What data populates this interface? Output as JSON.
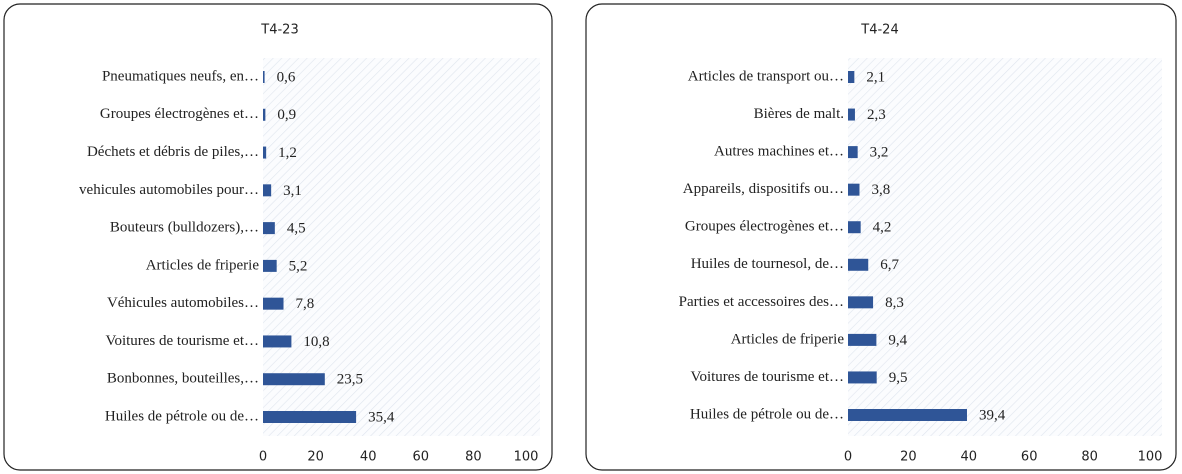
{
  "chart_data": [
    {
      "type": "bar",
      "orientation": "horizontal",
      "title": "T4-23",
      "categories": [
        "Pneumatiques neufs, en…",
        "Groupes électrogènes et…",
        "Déchets et débris de piles,…",
        "vehicules automobiles pour…",
        "Bouteurs (bulldozers),…",
        "Articles de friperie",
        "Véhicules automobiles…",
        "Voitures de tourisme et…",
        "Bonbonnes, bouteilles,…",
        "Huiles de pétrole ou de…"
      ],
      "values": [
        0.6,
        0.9,
        1.2,
        3.1,
        4.5,
        5.2,
        7.8,
        10.8,
        23.5,
        35.4
      ],
      "value_labels": [
        "0,6",
        "0,9",
        "1,2",
        "3,1",
        "4,5",
        "5,2",
        "7,8",
        "10,8",
        "23,5",
        "35,4"
      ],
      "color": "#2f5597",
      "xlim": [
        0,
        100
      ],
      "xticks": [
        0,
        20,
        40,
        60,
        80,
        100
      ]
    },
    {
      "type": "bar",
      "orientation": "horizontal",
      "title": "T4-24",
      "categories": [
        "Articles de transport ou…",
        "Bières de malt.",
        "Autres machines et…",
        "Appareils, dispositifs ou…",
        "Groupes électrogènes et…",
        "Huiles de tournesol, de…",
        "Parties et accessoires des…",
        "Articles de friperie",
        "Voitures de tourisme et…",
        "Huiles de pétrole ou de…"
      ],
      "values": [
        2.1,
        2.3,
        3.2,
        3.8,
        4.2,
        6.7,
        8.3,
        9.4,
        9.5,
        39.4
      ],
      "value_labels": [
        "2,1",
        "2,3",
        "3,2",
        "3,8",
        "4,2",
        "6,7",
        "8,3",
        "9,4",
        "9,5",
        "39,4"
      ],
      "color": "#2f5597",
      "xlim": [
        0,
        100
      ],
      "xticks": [
        0,
        20,
        40,
        60,
        80,
        100
      ]
    }
  ]
}
